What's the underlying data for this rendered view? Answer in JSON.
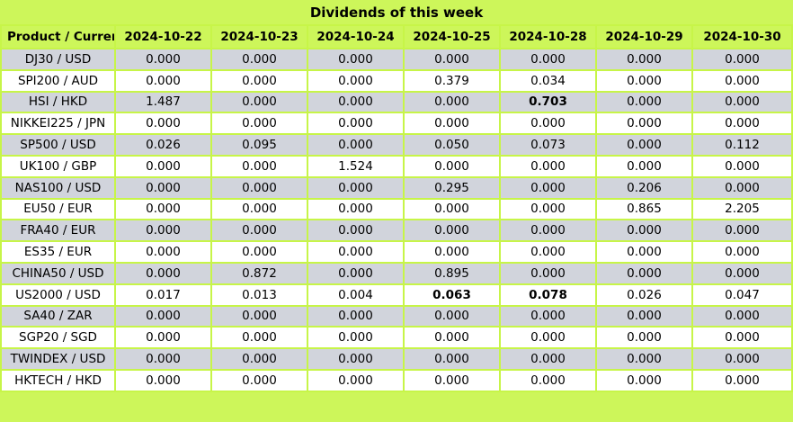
{
  "title": "Dividends of this week",
  "chart_data": {
    "type": "table",
    "title": "Dividends of this week",
    "product_header": "Product / Currency",
    "columns": [
      "2024-10-22",
      "2024-10-23",
      "2024-10-24",
      "2024-10-25",
      "2024-10-28",
      "2024-10-29",
      "2024-10-30"
    ],
    "rows": [
      {
        "product": "DJ30 / USD",
        "values": [
          "0.000",
          "0.000",
          "0.000",
          "0.000",
          "0.000",
          "0.000",
          "0.000"
        ],
        "bold_indices": []
      },
      {
        "product": "SPI200 / AUD",
        "values": [
          "0.000",
          "0.000",
          "0.000",
          "0.379",
          "0.034",
          "0.000",
          "0.000"
        ],
        "bold_indices": []
      },
      {
        "product": "HSI / HKD",
        "values": [
          "1.487",
          "0.000",
          "0.000",
          "0.000",
          "0.703",
          "0.000",
          "0.000"
        ],
        "bold_indices": [
          4
        ]
      },
      {
        "product": "NIKKEI225 / JPN",
        "values": [
          "0.000",
          "0.000",
          "0.000",
          "0.000",
          "0.000",
          "0.000",
          "0.000"
        ],
        "bold_indices": []
      },
      {
        "product": "SP500 / USD",
        "values": [
          "0.026",
          "0.095",
          "0.000",
          "0.050",
          "0.073",
          "0.000",
          "0.112"
        ],
        "bold_indices": []
      },
      {
        "product": "UK100 / GBP",
        "values": [
          "0.000",
          "0.000",
          "1.524",
          "0.000",
          "0.000",
          "0.000",
          "0.000"
        ],
        "bold_indices": []
      },
      {
        "product": "NAS100 / USD",
        "values": [
          "0.000",
          "0.000",
          "0.000",
          "0.295",
          "0.000",
          "0.206",
          "0.000"
        ],
        "bold_indices": []
      },
      {
        "product": "EU50 / EUR",
        "values": [
          "0.000",
          "0.000",
          "0.000",
          "0.000",
          "0.000",
          "0.865",
          "2.205"
        ],
        "bold_indices": []
      },
      {
        "product": "FRA40 / EUR",
        "values": [
          "0.000",
          "0.000",
          "0.000",
          "0.000",
          "0.000",
          "0.000",
          "0.000"
        ],
        "bold_indices": []
      },
      {
        "product": "ES35 / EUR",
        "values": [
          "0.000",
          "0.000",
          "0.000",
          "0.000",
          "0.000",
          "0.000",
          "0.000"
        ],
        "bold_indices": []
      },
      {
        "product": "CHINA50 / USD",
        "values": [
          "0.000",
          "0.872",
          "0.000",
          "0.895",
          "0.000",
          "0.000",
          "0.000"
        ],
        "bold_indices": []
      },
      {
        "product": "US2000 / USD",
        "values": [
          "0.017",
          "0.013",
          "0.004",
          "0.063",
          "0.078",
          "0.026",
          "0.047"
        ],
        "bold_indices": [
          3,
          4
        ]
      },
      {
        "product": "SA40 / ZAR",
        "values": [
          "0.000",
          "0.000",
          "0.000",
          "0.000",
          "0.000",
          "0.000",
          "0.000"
        ],
        "bold_indices": []
      },
      {
        "product": "SGP20 / SGD",
        "values": [
          "0.000",
          "0.000",
          "0.000",
          "0.000",
          "0.000",
          "0.000",
          "0.000"
        ],
        "bold_indices": []
      },
      {
        "product": "TWINDEX / USD",
        "values": [
          "0.000",
          "0.000",
          "0.000",
          "0.000",
          "0.000",
          "0.000",
          "0.000"
        ],
        "bold_indices": []
      },
      {
        "product": "HKTECH / HKD",
        "values": [
          "0.000",
          "0.000",
          "0.000",
          "0.000",
          "0.000",
          "0.000",
          "0.000"
        ],
        "bold_indices": []
      }
    ]
  },
  "colors": {
    "lime_background": "#cdf65a",
    "grid_border": "#c7f548",
    "row_alt_gray": "#d1d4dc",
    "row_white": "#ffffff",
    "text": "#000000"
  }
}
